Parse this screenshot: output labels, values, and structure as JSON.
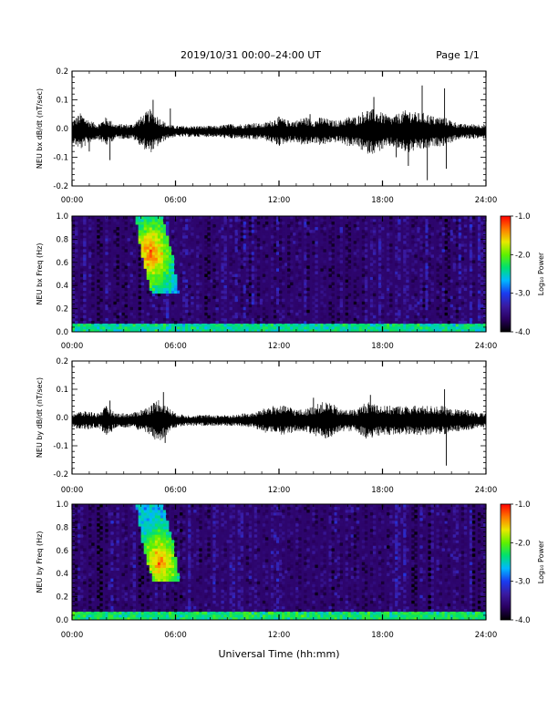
{
  "header": {
    "date_range": "2019/10/31  00:00–24:00 UT",
    "page": "Page 1/1"
  },
  "colors": {
    "trace": "#000000",
    "colormap": [
      "#000000",
      "#2a0060",
      "#3a1aa0",
      "#1a3cf0",
      "#00b8ff",
      "#00e070",
      "#60f000",
      "#e8e800",
      "#ff7800",
      "#ff0000"
    ]
  },
  "chart_data": [
    {
      "type": "line",
      "ylabel": "NEU bx dB/dt (nT/sec)",
      "xlim": [
        0,
        24
      ],
      "ylim": [
        -0.2,
        0.2
      ],
      "x_ticks": [
        "00:00",
        "06:00",
        "12:00",
        "18:00",
        "24:00"
      ],
      "y_ticks": [
        "-0.2",
        "-0.1",
        "0.0",
        "0.1",
        "0.2"
      ],
      "envelope": {
        "x": [
          0,
          0.5,
          1,
          1.5,
          2,
          2.5,
          3,
          3.5,
          4,
          4.5,
          5,
          5.5,
          6,
          6.5,
          7,
          7.5,
          8,
          8.5,
          9,
          9.5,
          10,
          10.5,
          11,
          11.5,
          12,
          12.5,
          13,
          13.5,
          14,
          14.5,
          15,
          15.5,
          16,
          16.5,
          17,
          17.5,
          18,
          18.5,
          19,
          19.5,
          20,
          20.5,
          21,
          21.5,
          22,
          22.5,
          23,
          23.5,
          24
        ],
        "y": [
          0.03,
          0.05,
          0.03,
          0.02,
          0.04,
          0.02,
          0.02,
          0.02,
          0.04,
          0.06,
          0.04,
          0.02,
          0.015,
          0.015,
          0.015,
          0.015,
          0.015,
          0.015,
          0.02,
          0.02,
          0.02,
          0.025,
          0.02,
          0.03,
          0.04,
          0.03,
          0.03,
          0.04,
          0.03,
          0.04,
          0.03,
          0.03,
          0.04,
          0.04,
          0.06,
          0.06,
          0.05,
          0.04,
          0.05,
          0.06,
          0.05,
          0.05,
          0.04,
          0.04,
          0.03,
          0.02,
          0.02,
          0.02,
          0.02
        ]
      },
      "spikes": [
        {
          "x": 1.0,
          "y": -0.08
        },
        {
          "x": 2.2,
          "y": -0.11
        },
        {
          "x": 4.7,
          "y": 0.1
        },
        {
          "x": 5.7,
          "y": 0.07
        },
        {
          "x": 13.8,
          "y": 0.05
        },
        {
          "x": 17.5,
          "y": 0.11
        },
        {
          "x": 18.8,
          "y": -0.1
        },
        {
          "x": 19.5,
          "y": -0.13
        },
        {
          "x": 20.3,
          "y": 0.15
        },
        {
          "x": 20.6,
          "y": -0.18
        },
        {
          "x": 21.6,
          "y": 0.14
        },
        {
          "x": 21.7,
          "y": -0.14
        }
      ]
    },
    {
      "type": "heatmap",
      "ylabel": "NEU bx Freq (Hz)",
      "xlim": [
        0,
        24
      ],
      "ylim": [
        0,
        1.0
      ],
      "x_ticks": [
        "00:00",
        "06:00",
        "12:00",
        "18:00",
        "24:00"
      ],
      "y_ticks": [
        "0.0",
        "0.2",
        "0.4",
        "0.6",
        "0.8",
        "1.0"
      ],
      "colorbar": {
        "label": "Log₁₀ Power",
        "range": [
          -4.0,
          -1.0
        ],
        "ticks": [
          "-1.0",
          "-2.0",
          "-3.0",
          "-4.0"
        ]
      },
      "background_level": -3.6,
      "low_freq_band": {
        "max_hz": 0.06,
        "level": -2.4
      },
      "event": {
        "start_h": 3.8,
        "end_h": 6.4,
        "freq_top": 1.0,
        "freq_bottom": 0.33,
        "peak_level": -1.2,
        "peak_time_h": 4.6,
        "peak_freq": 0.68
      }
    },
    {
      "type": "line",
      "ylabel": "NEU by dB/dt (nT/sec)",
      "xlim": [
        0,
        24
      ],
      "ylim": [
        -0.2,
        0.2
      ],
      "x_ticks": [
        "00:00",
        "06:00",
        "12:00",
        "18:00",
        "24:00"
      ],
      "y_ticks": [
        "-0.2",
        "-0.1",
        "0.0",
        "0.1",
        "0.2"
      ],
      "envelope": {
        "x": [
          0,
          0.5,
          1,
          1.5,
          2,
          2.5,
          3,
          3.5,
          4,
          4.5,
          5,
          5.5,
          6,
          6.5,
          7,
          7.5,
          8,
          8.5,
          9,
          9.5,
          10,
          10.5,
          11,
          11.5,
          12,
          12.5,
          13,
          13.5,
          14,
          14.5,
          15,
          15.5,
          16,
          16.5,
          17,
          17.5,
          18,
          18.5,
          19,
          19.5,
          20,
          20.5,
          21,
          21.5,
          22,
          22.5,
          23,
          23.5,
          24
        ],
        "y": [
          0.02,
          0.025,
          0.025,
          0.02,
          0.04,
          0.02,
          0.02,
          0.02,
          0.03,
          0.04,
          0.06,
          0.04,
          0.02,
          0.015,
          0.015,
          0.015,
          0.015,
          0.015,
          0.015,
          0.015,
          0.02,
          0.02,
          0.03,
          0.04,
          0.04,
          0.04,
          0.03,
          0.03,
          0.04,
          0.05,
          0.05,
          0.03,
          0.03,
          0.03,
          0.05,
          0.05,
          0.04,
          0.04,
          0.04,
          0.04,
          0.04,
          0.04,
          0.04,
          0.04,
          0.03,
          0.03,
          0.03,
          0.02,
          0.02
        ]
      },
      "spikes": [
        {
          "x": 2.2,
          "y": 0.06
        },
        {
          "x": 2.3,
          "y": -0.05
        },
        {
          "x": 5.0,
          "y": -0.06
        },
        {
          "x": 5.3,
          "y": 0.09
        },
        {
          "x": 5.4,
          "y": -0.09
        },
        {
          "x": 14.0,
          "y": 0.07
        },
        {
          "x": 17.3,
          "y": 0.08
        },
        {
          "x": 17.4,
          "y": -0.07
        },
        {
          "x": 21.6,
          "y": 0.1
        },
        {
          "x": 21.7,
          "y": -0.17
        }
      ]
    },
    {
      "type": "heatmap",
      "ylabel": "NEU by Freq (Hz)",
      "xlim": [
        0,
        24
      ],
      "ylim": [
        0,
        1.0
      ],
      "x_ticks": [
        "00:00",
        "06:00",
        "12:00",
        "18:00",
        "24:00"
      ],
      "y_ticks": [
        "0.0",
        "0.2",
        "0.4",
        "0.6",
        "0.8",
        "1.0"
      ],
      "xlabel": "Universal Time (hh:mm)",
      "colorbar": {
        "label": "Log₁₀ Power",
        "range": [
          -4.0,
          -1.0
        ],
        "ticks": [
          "-1.0",
          "-2.0",
          "-3.0",
          "-4.0"
        ]
      },
      "background_level": -3.6,
      "low_freq_band": {
        "max_hz": 0.06,
        "level": -2.3
      },
      "event": {
        "start_h": 3.8,
        "end_h": 6.5,
        "freq_top": 1.0,
        "freq_bottom": 0.33,
        "peak_level": -1.3,
        "peak_time_h": 5.1,
        "peak_freq": 0.5
      }
    }
  ]
}
